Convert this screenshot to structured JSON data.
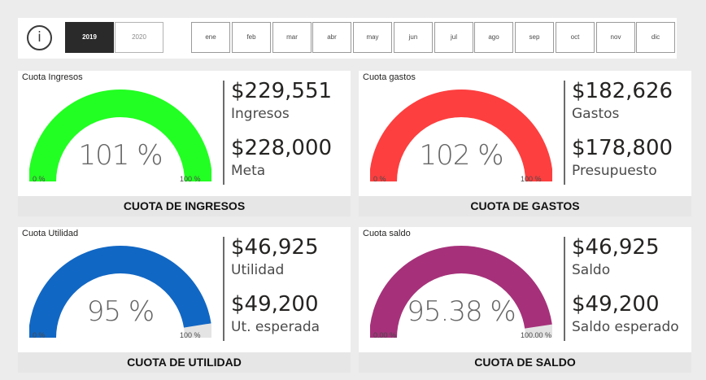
{
  "header": {
    "info_icon_glyph": "i",
    "years": [
      "2019",
      "2020"
    ],
    "active_year": "2019",
    "months": [
      "ene",
      "feb",
      "mar",
      "abr",
      "may",
      "jun",
      "jul",
      "ago",
      "sep",
      "oct",
      "nov",
      "dic"
    ]
  },
  "cards": [
    {
      "title": "Cuota Ingresos",
      "gauge_value_label": "101 %",
      "gauge_fraction": 1.0,
      "gauge_min": "0 %",
      "gauge_max": "100 %",
      "color": "#22ff22",
      "kpi1_value": "$229,551",
      "kpi1_label": "Ingresos",
      "kpi2_value": "$228,000",
      "kpi2_label": "Meta",
      "footer": "CUOTA DE INGRESOS"
    },
    {
      "title": "Cuota gastos",
      "gauge_value_label": "102 %",
      "gauge_fraction": 1.0,
      "gauge_min": "0 %",
      "gauge_max": "100 %",
      "color": "#fd3f3f",
      "kpi1_value": "$182,626",
      "kpi1_label": "Gastos",
      "kpi2_value": "$178,800",
      "kpi2_label": "Presupuesto",
      "footer": "CUOTA DE GASTOS"
    },
    {
      "title": "Cuota Utilidad",
      "gauge_value_label": "95 %",
      "gauge_fraction": 0.95,
      "gauge_min": "0 %",
      "gauge_max": "100 %",
      "color": "#1167c4",
      "kpi1_value": "$46,925",
      "kpi1_label": "Utilidad",
      "kpi2_value": "$49,200",
      "kpi2_label": "Ut. esperada",
      "footer": "CUOTA DE UTILIDAD"
    },
    {
      "title": "Cuota saldo",
      "gauge_value_label": "95.38 %",
      "gauge_fraction": 0.9538,
      "gauge_min": "0.00 %",
      "gauge_max": "100.00 %",
      "color": "#a6317a",
      "kpi1_value": "$46,925",
      "kpi1_label": "Saldo",
      "kpi2_value": "$49,200",
      "kpi2_label": "Saldo esperado",
      "footer": "CUOTA DE SALDO"
    }
  ]
}
